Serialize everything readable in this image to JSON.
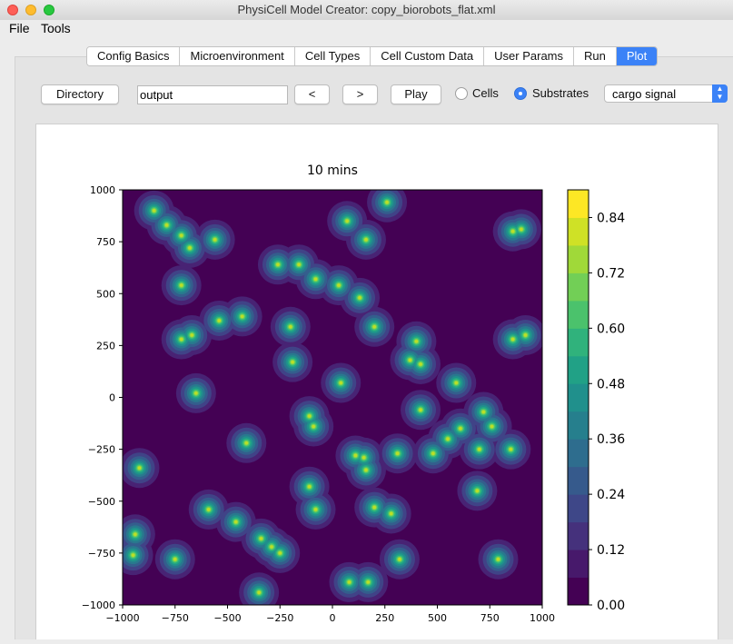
{
  "window": {
    "title": "PhysiCell Model Creator: copy_biorobots_flat.xml",
    "controls": {
      "close": "#fe5f57",
      "minimize": "#febc2e",
      "zoom": "#28c840"
    }
  },
  "menu": {
    "items": [
      "File",
      "Tools"
    ]
  },
  "tabs": [
    "Config Basics",
    "Microenvironment",
    "Cell Types",
    "Cell Custom Data",
    "User Params",
    "Run",
    "Plot"
  ],
  "active_tab": "Plot",
  "toolbar": {
    "directory_label": "Directory",
    "output_value": "output",
    "prev_label": "<",
    "next_label": ">",
    "play_label": "Play",
    "cells_label": "Cells",
    "substrates_label": "Substrates",
    "substrates_selected": true,
    "substrate_select": "cargo signal"
  },
  "chart_data": {
    "type": "heatmap",
    "title": "10 mins",
    "xlim": [
      -1000,
      1000
    ],
    "ylim": [
      -1000,
      1000
    ],
    "x_ticks": [
      "−1000",
      "−750",
      "−500",
      "−250",
      "0",
      "250",
      "500",
      "750",
      "1000"
    ],
    "x_tick_values": [
      -1000,
      -750,
      -500,
      -250,
      0,
      250,
      500,
      750,
      1000
    ],
    "y_ticks": [
      "1000",
      "750",
      "500",
      "250",
      "0",
      "−250",
      "−500",
      "−750",
      "−1000"
    ],
    "y_tick_values": [
      1000,
      750,
      500,
      250,
      0,
      -250,
      -500,
      -750,
      -1000
    ],
    "colorbar": {
      "range": [
        0,
        0.9
      ],
      "tick_labels": [
        "0.84",
        "0.72",
        "0.60",
        "0.48",
        "0.36",
        "0.24",
        "0.12",
        "0.00"
      ],
      "tick_values": [
        0.84,
        0.72,
        0.6,
        0.48,
        0.36,
        0.24,
        0.12,
        0.0
      ],
      "levels": 15,
      "colormap": [
        "#440154",
        "#482374",
        "#404387",
        "#345e8d",
        "#29788e",
        "#20908c",
        "#22a884",
        "#43bf71",
        "#7ad251",
        "#bcdf27",
        "#fde725"
      ]
    },
    "hotspots": [
      [
        -850,
        900
      ],
      [
        -720,
        780
      ],
      [
        -680,
        720
      ],
      [
        -560,
        760
      ],
      [
        -790,
        830
      ],
      [
        -720,
        540
      ],
      [
        -540,
        370
      ],
      [
        -430,
        390
      ],
      [
        -670,
        300
      ],
      [
        -720,
        280
      ],
      [
        -260,
        640
      ],
      [
        -160,
        640
      ],
      [
        -80,
        570
      ],
      [
        30,
        540
      ],
      [
        130,
        480
      ],
      [
        70,
        850
      ],
      [
        160,
        760
      ],
      [
        260,
        940
      ],
      [
        860,
        800
      ],
      [
        900,
        810
      ],
      [
        -200,
        340
      ],
      [
        -190,
        170
      ],
      [
        40,
        70
      ],
      [
        200,
        340
      ],
      [
        400,
        270
      ],
      [
        370,
        180
      ],
      [
        420,
        160
      ],
      [
        420,
        -60
      ],
      [
        590,
        70
      ],
      [
        -650,
        20
      ],
      [
        -410,
        -220
      ],
      [
        -110,
        -90
      ],
      [
        -90,
        -140
      ],
      [
        150,
        -290
      ],
      [
        160,
        -350
      ],
      [
        310,
        -270
      ],
      [
        720,
        -70
      ],
      [
        860,
        280
      ],
      [
        920,
        300
      ],
      [
        550,
        -200
      ],
      [
        480,
        -270
      ],
      [
        700,
        -250
      ],
      [
        850,
        -250
      ],
      [
        690,
        -450
      ],
      [
        -920,
        -340
      ],
      [
        -590,
        -540
      ],
      [
        -460,
        -600
      ],
      [
        -110,
        -430
      ],
      [
        -80,
        -540
      ],
      [
        200,
        -530
      ],
      [
        280,
        -560
      ],
      [
        320,
        -780
      ],
      [
        -340,
        -680
      ],
      [
        -290,
        -720
      ],
      [
        -250,
        -750
      ],
      [
        -940,
        -660
      ],
      [
        -950,
        -760
      ],
      [
        -750,
        -780
      ],
      [
        -350,
        -940
      ],
      [
        170,
        -890
      ],
      [
        80,
        -890
      ],
      [
        790,
        -780
      ],
      [
        610,
        -150
      ],
      [
        760,
        -140
      ],
      [
        110,
        -280
      ]
    ]
  }
}
